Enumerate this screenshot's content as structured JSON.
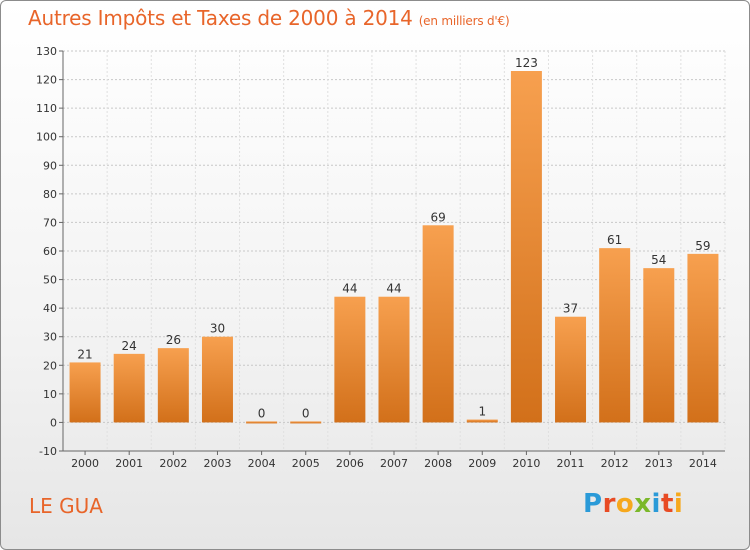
{
  "header": {
    "title": "Autres Impôts et Taxes de 2000 à 2014",
    "unit": "(en milliers d'€)"
  },
  "footer": {
    "city": "LE GUA",
    "logo_letters": [
      "P",
      "r",
      "o",
      "x",
      "i",
      "t",
      "i"
    ]
  },
  "colors": {
    "accent": "#e8652a",
    "bar_top": "#f7a04f",
    "bar_bottom": "#d2701a",
    "logo": [
      "#2a9ad8",
      "#e84b24",
      "#f6a81d",
      "#7bb82a",
      "#2a9ad8",
      "#e84b24",
      "#f6a81d"
    ]
  },
  "chart_data": {
    "type": "bar",
    "categories": [
      "2000",
      "2001",
      "2002",
      "2003",
      "2004",
      "2005",
      "2006",
      "2007",
      "2008",
      "2009",
      "2010",
      "2011",
      "2012",
      "2013",
      "2014"
    ],
    "values": [
      21,
      24,
      26,
      30,
      0,
      0,
      44,
      44,
      69,
      1,
      123,
      37,
      61,
      54,
      59
    ],
    "ylim": [
      -10,
      130
    ],
    "yticks": [
      -10,
      0,
      10,
      20,
      30,
      40,
      50,
      60,
      70,
      80,
      90,
      100,
      110,
      120,
      130
    ],
    "grid": true
  }
}
